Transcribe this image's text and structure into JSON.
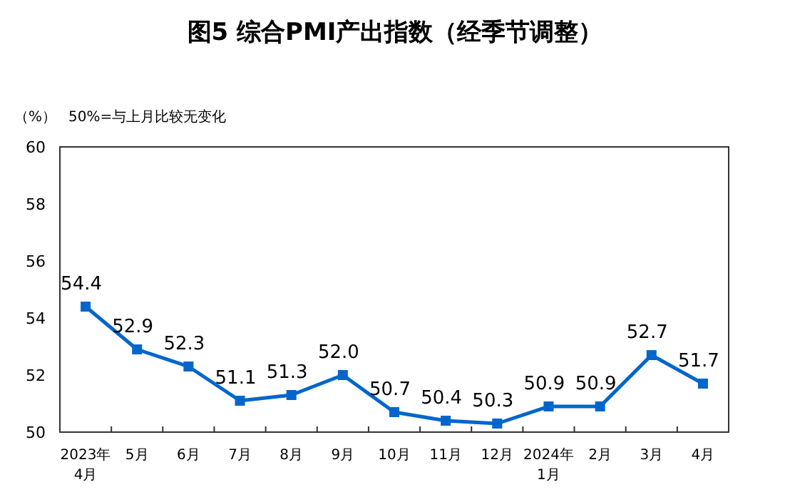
{
  "chart_data": {
    "type": "line",
    "title": "图5  综合PMI产出指数（经季节调整）",
    "ylabel": "（%）",
    "annotations": [
      "50%=与上月比较无变化"
    ],
    "categories": [
      "2023年\n4月",
      "5月",
      "6月",
      "7月",
      "8月",
      "9月",
      "10月",
      "11月",
      "12月",
      "2024年\n1月",
      "2月",
      "3月",
      "4月"
    ],
    "values": [
      54.4,
      52.9,
      52.3,
      51.1,
      51.3,
      52.0,
      50.7,
      50.4,
      50.3,
      50.9,
      50.9,
      52.7,
      51.7
    ],
    "color": "#0066cc",
    "ylim": [
      50,
      60
    ],
    "yticks": [
      50,
      52,
      54,
      56,
      58,
      60
    ],
    "value_labels": [
      "54.4",
      "52.9",
      "52.3",
      "51.1",
      "51.3",
      "52.0",
      "50.7",
      "50.4",
      "50.3",
      "50.9",
      "50.9",
      "52.7",
      "51.7"
    ],
    "marker": "square",
    "line_style": "solid"
  }
}
